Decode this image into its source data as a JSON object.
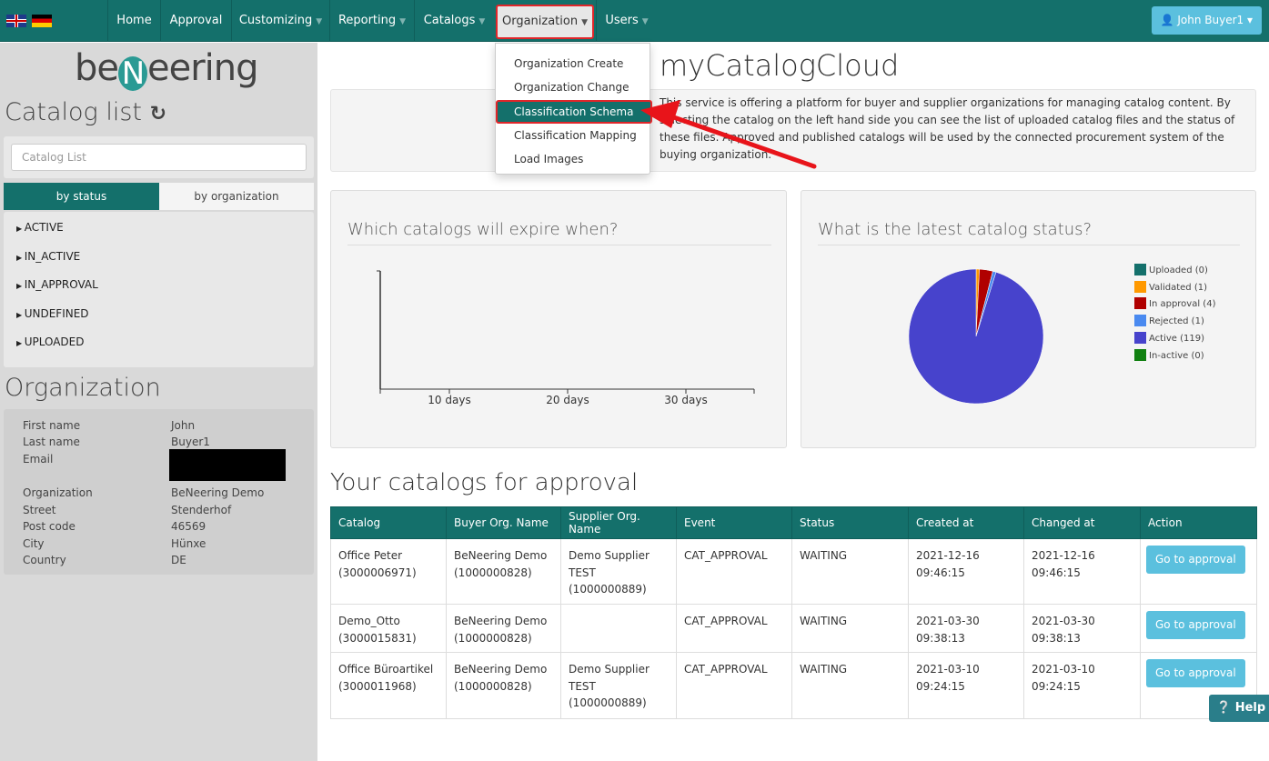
{
  "nav": {
    "items": [
      {
        "label": "Home",
        "dd": false
      },
      {
        "label": "Approval",
        "dd": false
      },
      {
        "label": "Customizing",
        "dd": true
      },
      {
        "label": "Reporting",
        "dd": true
      },
      {
        "label": "Catalogs",
        "dd": true
      },
      {
        "label": "Organization",
        "dd": true
      },
      {
        "label": "Users",
        "dd": true
      }
    ],
    "user": "John Buyer1",
    "colors": {
      "brand": "#14706b",
      "highlight": "#e0262a"
    }
  },
  "dropdown": {
    "items": [
      "Organization Create",
      "Organization Change",
      "Classification Schema",
      "Classification Mapping",
      "Load Images"
    ],
    "active": "Classification Schema"
  },
  "sidebar": {
    "logo": "beNeering",
    "catalog_title": "Catalog list",
    "search_placeholder": "Catalog List",
    "tabs": [
      "by status",
      "by organization"
    ],
    "statuses": [
      "ACTIVE",
      "IN_ACTIVE",
      "IN_APPROVAL",
      "UNDEFINED",
      "UPLOADED"
    ],
    "org_title": "Organization",
    "org": [
      [
        "First name",
        "John"
      ],
      [
        "Last name",
        "Buyer1"
      ],
      [
        "Email",
        ""
      ],
      [
        "Organization",
        "BeNeering Demo"
      ],
      [
        "Street",
        "Stenderhof"
      ],
      [
        "Post code",
        "46569"
      ],
      [
        "City",
        "Hünxe"
      ],
      [
        "Country",
        "DE"
      ]
    ]
  },
  "main": {
    "title": "myCatalogCloud",
    "info": "This service is offering a platform for buyer and supplier organizations for managing catalog content. By selecting the catalog on the left hand side you can see the list of uploaded catalog files and the status of these files. Approved and published catalogs will be used by the connected procurement system of the buying organization.",
    "expire_title": "Which catalogs will expire when?",
    "status_title": "What is the latest catalog status?",
    "approval_title": "Your catalogs for approval",
    "columns": [
      "Catalog",
      "Buyer Org. Name",
      "Supplier Org. Name",
      "Event",
      "Status",
      "Created at",
      "Changed at",
      "Action"
    ],
    "rows": [
      [
        "Office Peter (3000006971)",
        "BeNeering Demo (1000000828)",
        "Demo Supplier TEST (1000000889)",
        "CAT_APPROVAL",
        "WAITING",
        "2021-12-16 09:46:15",
        "2021-12-16 09:46:15",
        "Go to approval"
      ],
      [
        "Demo_Otto (3000015831)",
        "BeNeering Demo (1000000828)",
        "",
        "CAT_APPROVAL",
        "WAITING",
        "2021-03-30 09:38:13",
        "2021-03-30 09:38:13",
        "Go to approval"
      ],
      [
        "Office Büroartikel (3000011968)",
        "BeNeering Demo (1000000828)",
        "Demo Supplier TEST (1000000889)",
        "CAT_APPROVAL",
        "WAITING",
        "2021-03-10 09:24:15",
        "2021-03-10 09:24:15",
        "Go to approval"
      ]
    ]
  },
  "help": "Help",
  "chart_data": [
    {
      "type": "line",
      "title": "Which catalogs will expire when?",
      "x_ticks": [
        "10 days",
        "20 days",
        "30 days"
      ],
      "series": []
    },
    {
      "type": "pie",
      "title": "What is the latest catalog status?",
      "legend": "right",
      "slices": [
        {
          "label": "Uploaded (0)",
          "value": 0,
          "color": "#14706b"
        },
        {
          "label": "Validated (1)",
          "value": 1,
          "color": "#ff9900"
        },
        {
          "label": "In approval (4)",
          "value": 4,
          "color": "#b00000"
        },
        {
          "label": "Rejected (1)",
          "value": 1,
          "color": "#4a8af0"
        },
        {
          "label": "Active (119)",
          "value": 119,
          "color": "#4743cc"
        },
        {
          "label": "In-active (0)",
          "value": 0,
          "color": "#108010"
        }
      ]
    }
  ]
}
